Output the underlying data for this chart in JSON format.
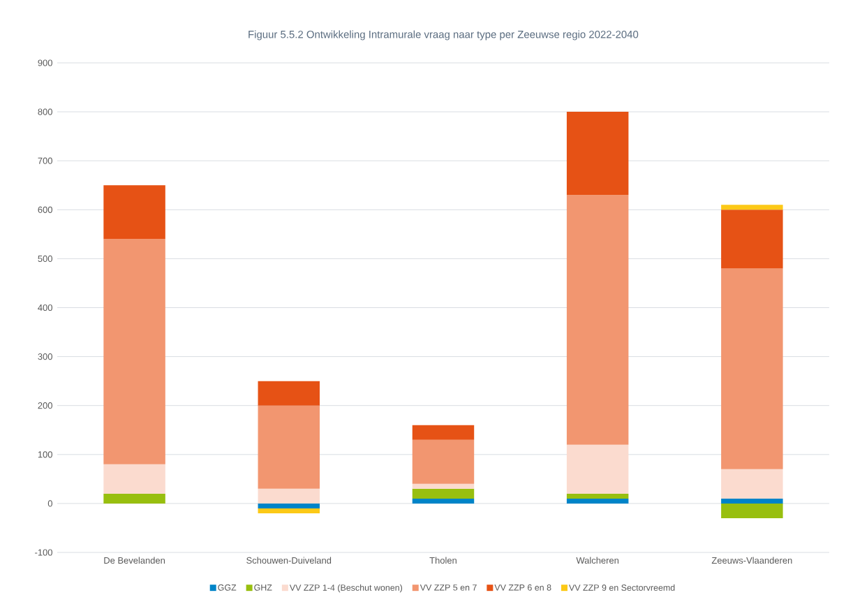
{
  "chart_data": {
    "type": "bar",
    "stacked": true,
    "title": "Figuur 5.5.2 Ontwikkeling Intramurale vraag naar type per Zeeuwse regio 2022-2040",
    "categories": [
      "De Bevelanden",
      "Schouwen-Duiveland",
      "Tholen",
      "Walcheren",
      "Zeeuws-Vlaanderen"
    ],
    "series": [
      {
        "name": "GGZ",
        "color": "#0084c8",
        "values": [
          0,
          -10,
          10,
          10,
          10
        ]
      },
      {
        "name": "GHZ",
        "color": "#98bf0f",
        "values": [
          20,
          0,
          20,
          10,
          -30
        ]
      },
      {
        "name": "VV ZZP 1-4 (Beschut wonen)",
        "color": "#fbdbcf",
        "values": [
          60,
          30,
          10,
          100,
          60
        ]
      },
      {
        "name": "VV ZZP 5 en 7",
        "color": "#f29670",
        "values": [
          460,
          170,
          90,
          510,
          410
        ]
      },
      {
        "name": "VV ZZP 6 en 8",
        "color": "#e65215",
        "values": [
          110,
          50,
          30,
          170,
          120
        ]
      },
      {
        "name": "VV ZZP 9 en Sectorvreemd",
        "color": "#fcc917",
        "values": [
          0,
          -10,
          0,
          0,
          10
        ]
      }
    ],
    "ylim": [
      -100,
      900
    ],
    "yticks": [
      -100,
      0,
      100,
      200,
      300,
      400,
      500,
      600,
      700,
      800,
      900
    ],
    "grid": "y",
    "legend": "bottom"
  }
}
